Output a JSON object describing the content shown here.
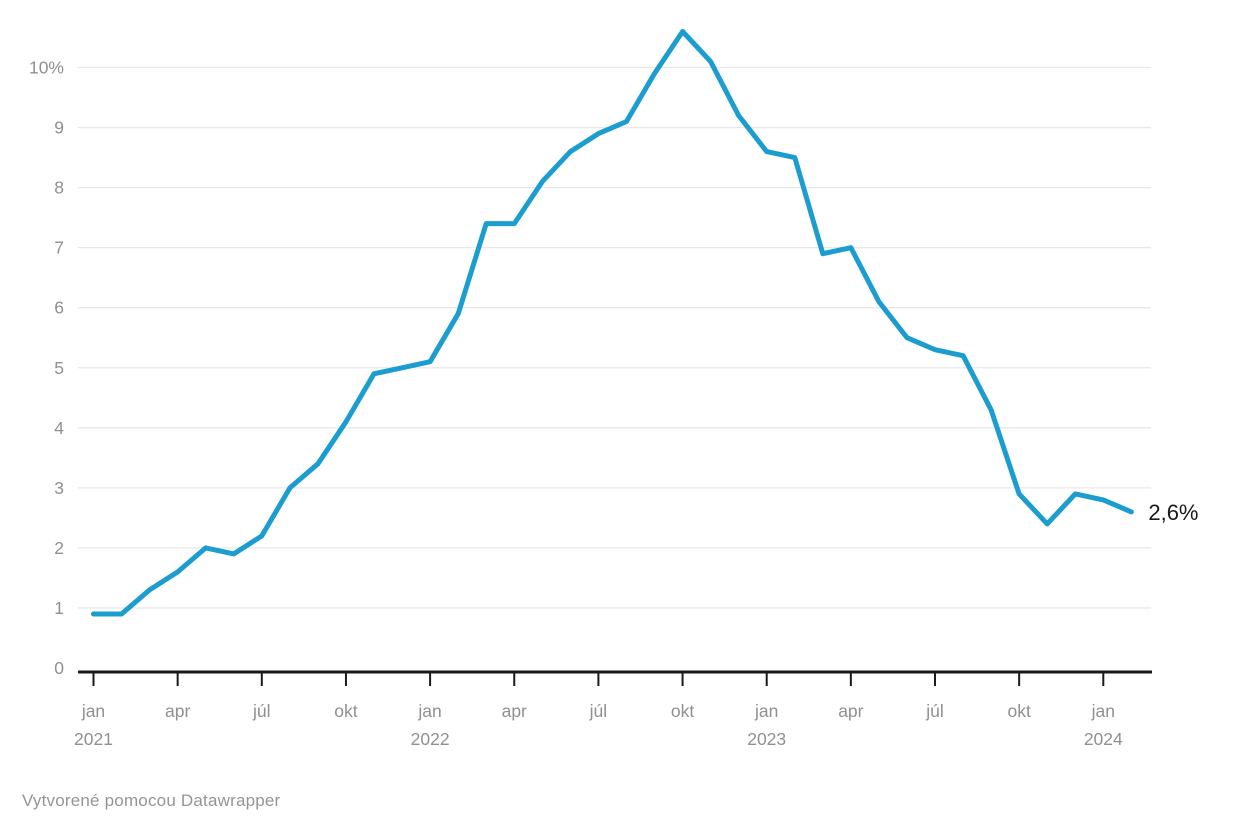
{
  "chart_data": {
    "type": "line",
    "title": "",
    "grid": "horizontal",
    "legend_position": "none",
    "x": [
      "2021-01",
      "2021-02",
      "2021-03",
      "2021-04",
      "2021-05",
      "2021-06",
      "2021-07",
      "2021-08",
      "2021-09",
      "2021-10",
      "2021-11",
      "2021-12",
      "2022-01",
      "2022-02",
      "2022-03",
      "2022-04",
      "2022-05",
      "2022-06",
      "2022-07",
      "2022-08",
      "2022-09",
      "2022-10",
      "2022-11",
      "2022-12",
      "2023-01",
      "2023-02",
      "2023-03",
      "2023-04",
      "2023-05",
      "2023-06",
      "2023-07",
      "2023-08",
      "2023-09",
      "2023-10",
      "2023-11",
      "2023-12",
      "2024-01",
      "2024-02"
    ],
    "values": [
      0.9,
      0.9,
      1.3,
      1.6,
      2.0,
      1.9,
      2.2,
      3.0,
      3.4,
      4.1,
      4.9,
      5.0,
      5.1,
      5.9,
      7.4,
      7.4,
      8.1,
      8.6,
      8.9,
      9.1,
      9.9,
      10.6,
      10.1,
      9.2,
      8.6,
      8.5,
      6.9,
      7.0,
      6.1,
      5.5,
      5.3,
      5.2,
      4.3,
      2.9,
      2.4,
      2.9,
      2.8,
      2.6
    ],
    "end_label": "2,6%",
    "peak_value": 10.6,
    "last_value": 2.6,
    "unit": "%",
    "ylim": [
      0,
      10.8
    ],
    "y_axis": {
      "ticks": [
        0,
        1,
        2,
        3,
        4,
        5,
        6,
        7,
        8,
        9,
        10
      ],
      "labels": [
        "0",
        "1",
        "2",
        "3",
        "4",
        "5",
        "6",
        "7",
        "8",
        "9",
        "10%"
      ]
    },
    "x_axis": {
      "ticks": [
        {
          "month_index": 0,
          "label": "jan",
          "year": "2021"
        },
        {
          "month_index": 3,
          "label": "apr",
          "year": ""
        },
        {
          "month_index": 6,
          "label": "júl",
          "year": ""
        },
        {
          "month_index": 9,
          "label": "okt",
          "year": ""
        },
        {
          "month_index": 12,
          "label": "jan",
          "year": "2022"
        },
        {
          "month_index": 15,
          "label": "apr",
          "year": ""
        },
        {
          "month_index": 18,
          "label": "júl",
          "year": ""
        },
        {
          "month_index": 21,
          "label": "okt",
          "year": ""
        },
        {
          "month_index": 24,
          "label": "jan",
          "year": "2023"
        },
        {
          "month_index": 27,
          "label": "apr",
          "year": ""
        },
        {
          "month_index": 30,
          "label": "júl",
          "year": ""
        },
        {
          "month_index": 33,
          "label": "okt",
          "year": ""
        },
        {
          "month_index": 36,
          "label": "jan",
          "year": "2024"
        }
      ]
    },
    "colors": {
      "line": "#1b9dd0",
      "gridline": "#e8e8e8",
      "axis_line": "#1a1a1a",
      "tick_mark": "#1a1a1a",
      "axis_text": "#909090",
      "end_label_text": "#1a1a1a"
    }
  },
  "footer": {
    "attribution": "Vytvorené pomocou Datawrapper"
  }
}
